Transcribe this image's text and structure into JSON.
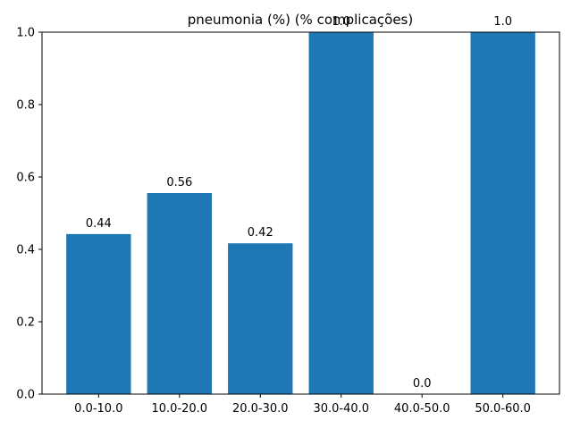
{
  "chart_data": {
    "type": "bar",
    "title": "pneumonia (%) (% complicações)",
    "xlabel": "",
    "ylabel": "",
    "categories": [
      "0.0-10.0",
      "10.0-20.0",
      "20.0-30.0",
      "30.0-40.0",
      "40.0-50.0",
      "50.0-60.0"
    ],
    "values": [
      0.4423,
      0.5556,
      0.4167,
      1.0,
      0.0,
      1.0
    ],
    "data_labels": [
      "0.44",
      "0.56",
      "0.42",
      "1.0",
      "0.0",
      "1.0"
    ],
    "ylim": [
      0,
      1.0
    ],
    "yticks": [
      0.0,
      0.2,
      0.4,
      0.6,
      0.8,
      1.0
    ],
    "ytick_labels": [
      "0.0",
      "0.2",
      "0.4",
      "0.6",
      "0.8",
      "1.0"
    ],
    "grid": false,
    "bar_color": "#1f77b4"
  }
}
